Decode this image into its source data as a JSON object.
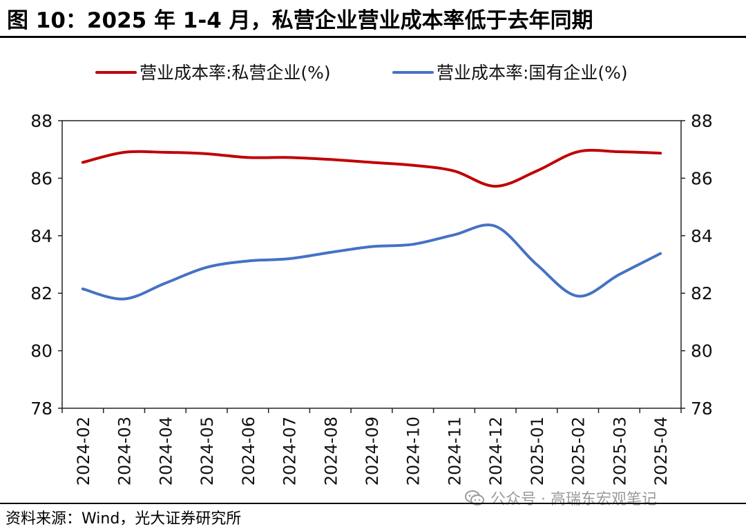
{
  "figure": {
    "title": "图 10：2025 年 1-4 月，私营企业营业成本率低于去年同期",
    "source": "资料来源：Wind，光大证券研究所",
    "watermark": "公众号 · 高瑞东宏观笔记"
  },
  "chart_data": {
    "type": "line",
    "title": "",
    "xlabel": "",
    "ylabel": "",
    "ylim": [
      78,
      88
    ],
    "yticks": [
      78,
      80,
      82,
      84,
      86,
      88
    ],
    "y2ticks": [
      78,
      80,
      82,
      84,
      86,
      88
    ],
    "grid": false,
    "legend_position": "top",
    "categories": [
      "2024-02",
      "2024-03",
      "2024-04",
      "2024-05",
      "2024-06",
      "2024-07",
      "2024-08",
      "2024-09",
      "2024-10",
      "2024-11",
      "2024-12",
      "2025-01",
      "2025-02",
      "2025-03",
      "2025-04"
    ],
    "series": [
      {
        "name": "营业成本率:私营企业(%)",
        "color": "#c00000",
        "values": [
          86.55,
          86.9,
          86.9,
          86.85,
          86.72,
          86.72,
          86.65,
          86.55,
          86.45,
          86.25,
          85.72,
          86.25,
          86.92,
          86.92,
          86.87
        ]
      },
      {
        "name": "营业成本率:国有企业(%)",
        "color": "#4472c4",
        "values": [
          82.15,
          81.8,
          82.35,
          82.9,
          83.12,
          83.2,
          83.42,
          83.62,
          83.7,
          84.03,
          84.33,
          83.0,
          81.9,
          82.65,
          83.38
        ]
      }
    ]
  }
}
